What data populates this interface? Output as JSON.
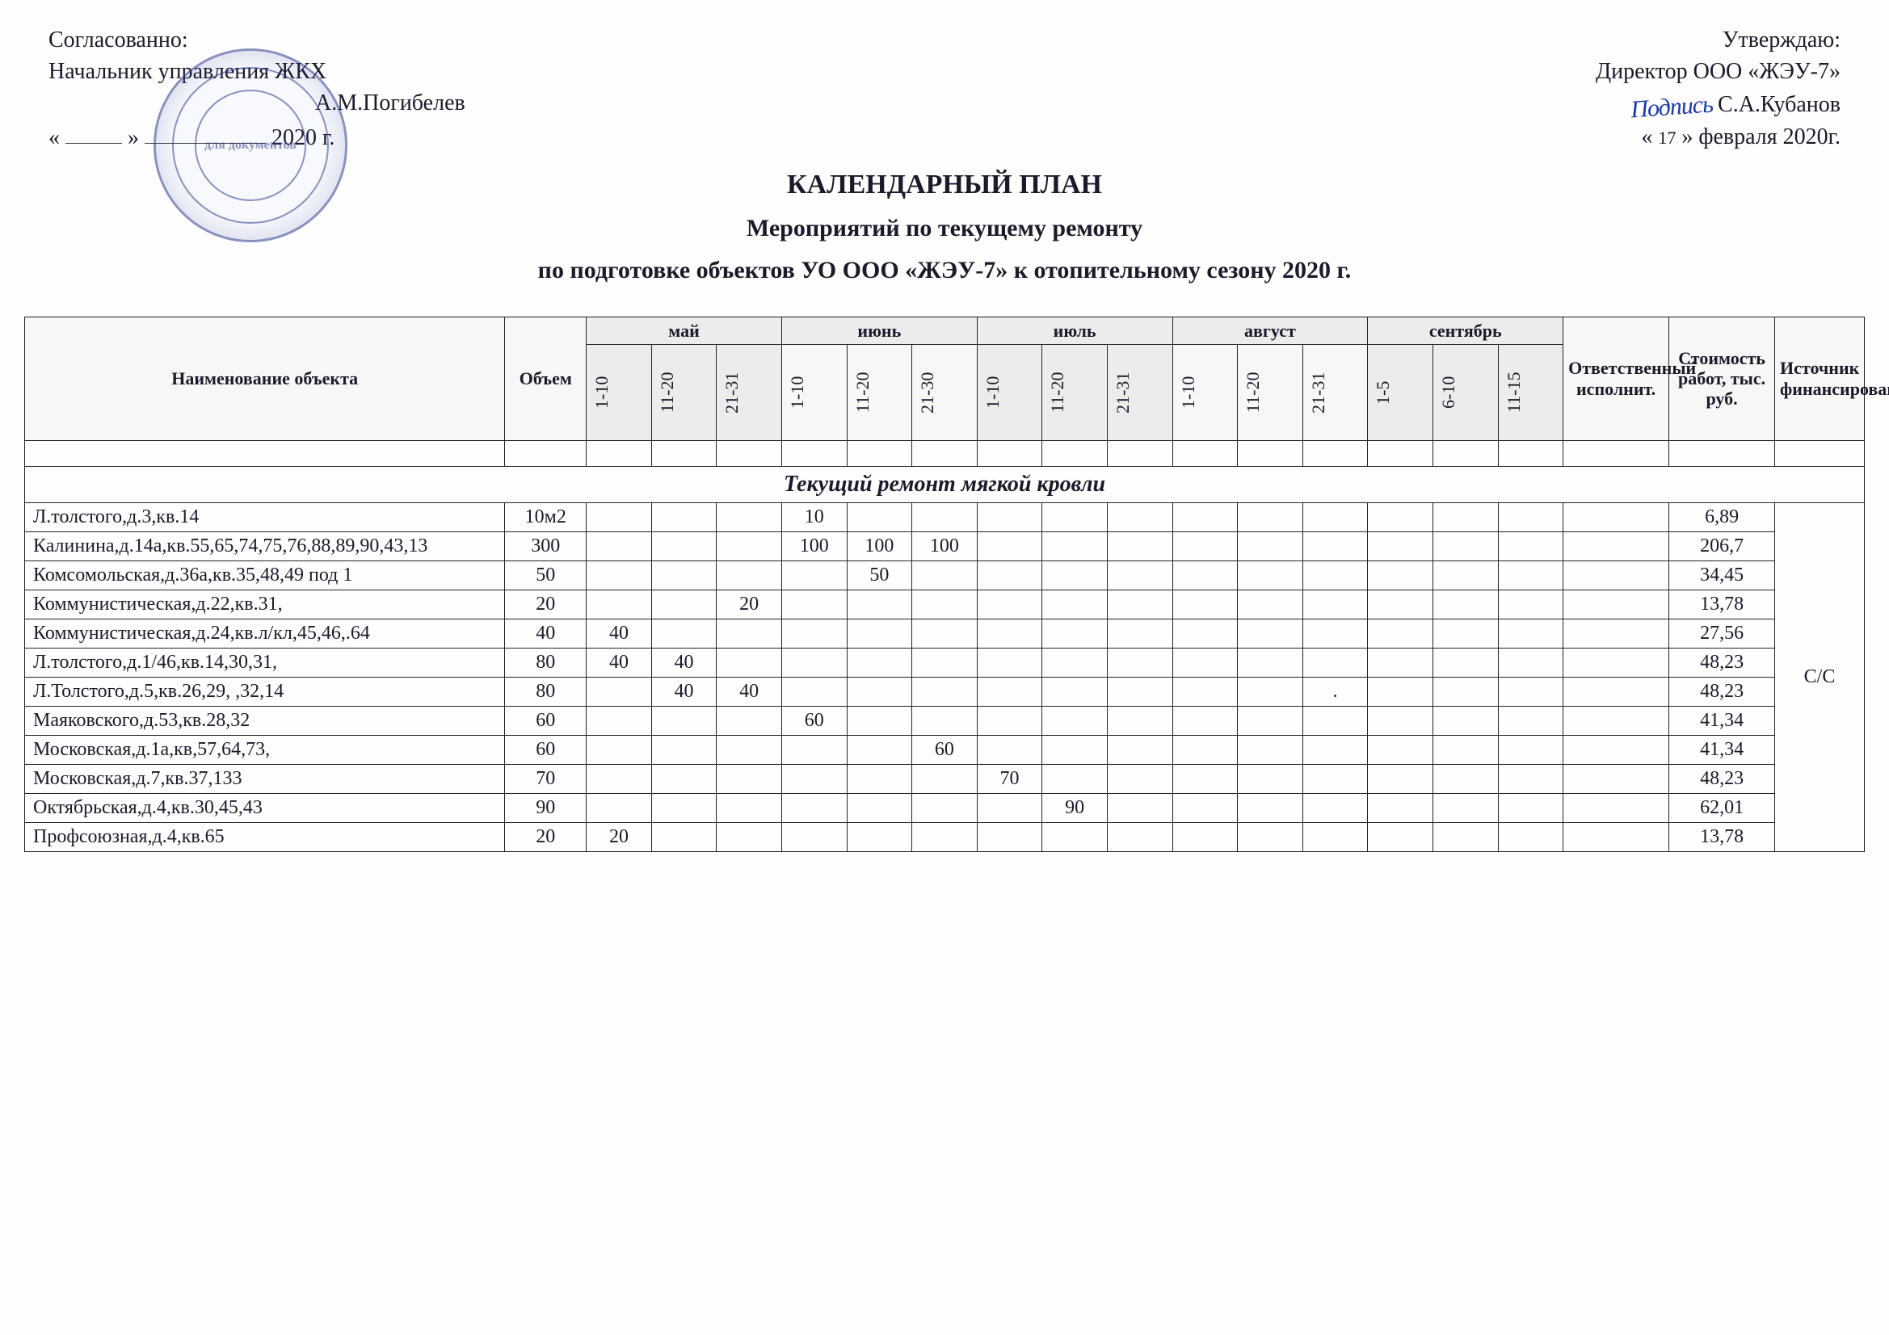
{
  "approval_left": {
    "line1": "Согласованно:",
    "line2": "Начальник управления ЖКХ",
    "name": "А.М.Погибелев",
    "date_open": "«",
    "date_mid": "»",
    "year_suffix": "2020 г.",
    "stamp_inner": "для\nдокументов"
  },
  "approval_right": {
    "line1": "Утверждаю:",
    "line2": "Директор ООО «ЖЭУ-7»",
    "name": "С.А.Кубанов",
    "sig": "Подпись",
    "date_open": "«",
    "date_day": "17",
    "date_mid": "» февраля 2020г."
  },
  "titles": {
    "t1": "КАЛЕНДАРНЫЙ ПЛАН",
    "t2": "Мероприятий по текущему ремонту",
    "t3": "по подготовке объектов  УО ООО «ЖЭУ-7» к отопительному сезону 2020 г."
  },
  "headers": {
    "name": "Наименование объекта",
    "volume": "Объем",
    "months": [
      "май",
      "июнь",
      "июль",
      "август",
      "сентябрь"
    ],
    "subcols": {
      "may": [
        "1-10",
        "11-20",
        "21-31"
      ],
      "jun": [
        "1-10",
        "11-20",
        "21-30"
      ],
      "jul": [
        "1-10",
        "11-20",
        "21-31"
      ],
      "aug": [
        "1-10",
        "11-20",
        "21-31"
      ],
      "sep": [
        "1-5",
        "6-10",
        "11-15"
      ]
    },
    "responsible": "Ответственный исполнит.",
    "cost": "Стоимость работ, тыс. руб.",
    "finance": "Источник финансирования"
  },
  "section_title": "Текущий ремонт мягкой кровли",
  "finance_group": "С/С",
  "rows": [
    {
      "name": "Л.толстого,д.3,кв.14",
      "vol": "10м2",
      "c": [
        "",
        "",
        "",
        "10",
        "",
        "",
        "",
        "",
        "",
        "",
        "",
        "",
        "",
        "",
        ""
      ],
      "cost": "6,89"
    },
    {
      "name": "Калинина,д.14а,кв.55,65,74,75,76,88,89,90,43,13",
      "vol": "300",
      "c": [
        "",
        "",
        "",
        "100",
        "100",
        "100",
        "",
        "",
        "",
        "",
        "",
        "",
        "",
        "",
        ""
      ],
      "cost": "206,7"
    },
    {
      "name": "Комсомольская,д.36а,кв.35,48,49 под 1",
      "vol": "50",
      "c": [
        "",
        "",
        "",
        "",
        "50",
        "",
        "",
        "",
        "",
        "",
        "",
        "",
        "",
        "",
        ""
      ],
      "cost": "34,45"
    },
    {
      "name": "Коммунистическая,д.22,кв.31,",
      "vol": "20",
      "c": [
        "",
        "",
        "20",
        "",
        "",
        "",
        "",
        "",
        "",
        "",
        "",
        "",
        "",
        "",
        ""
      ],
      "cost": "13,78"
    },
    {
      "name": "Коммунистическая,д.24,кв.л/кл,45,46,.64",
      "vol": "40",
      "c": [
        "40",
        "",
        "",
        "",
        "",
        "",
        "",
        "",
        "",
        "",
        "",
        "",
        "",
        "",
        ""
      ],
      "cost": "27,56"
    },
    {
      "name": "Л.толстого,д.1/46,кв.14,30,31,",
      "vol": "80",
      "c": [
        "40",
        "40",
        "",
        "",
        "",
        "",
        "",
        "",
        "",
        "",
        "",
        "",
        "",
        "",
        ""
      ],
      "cost": "48,23"
    },
    {
      "name": "Л.Толстого,д.5,кв.26,29, ,32,14",
      "vol": "80",
      "c": [
        "",
        "40",
        "40",
        "",
        "",
        "",
        "",
        "",
        "",
        "",
        "",
        ".",
        "",
        "",
        ""
      ],
      "cost": "48,23"
    },
    {
      "name": "Маяковского,д.53,кв.28,32",
      "vol": "60",
      "c": [
        "",
        "",
        "",
        "60",
        "",
        "",
        "",
        "",
        "",
        "",
        "",
        "",
        "",
        "",
        ""
      ],
      "cost": "41,34"
    },
    {
      "name": "Московская,д.1а,кв,57,64,73,",
      "vol": "60",
      "c": [
        "",
        "",
        "",
        "",
        "",
        "60",
        "",
        "",
        "",
        "",
        "",
        "",
        "",
        "",
        ""
      ],
      "cost": "41,34"
    },
    {
      "name": "Московская,д.7,кв.37,133",
      "vol": "70",
      "c": [
        "",
        "",
        "",
        "",
        "",
        "",
        "70",
        "",
        "",
        "",
        "",
        "",
        "",
        "",
        ""
      ],
      "cost": "48,23"
    },
    {
      "name": "Октябрьская,д.4,кв.30,45,43",
      "vol": "90",
      "c": [
        "",
        "",
        "",
        "",
        "",
        "",
        "",
        "90",
        "",
        "",
        "",
        "",
        "",
        "",
        ""
      ],
      "cost": "62,01"
    },
    {
      "name": "Профсоюзная,д.4,кв.65",
      "vol": "20",
      "c": [
        "20",
        "",
        "",
        "",
        "",
        "",
        "",
        "",
        "",
        "",
        "",
        "",
        "",
        "",
        ""
      ],
      "cost": "13,78"
    }
  ]
}
